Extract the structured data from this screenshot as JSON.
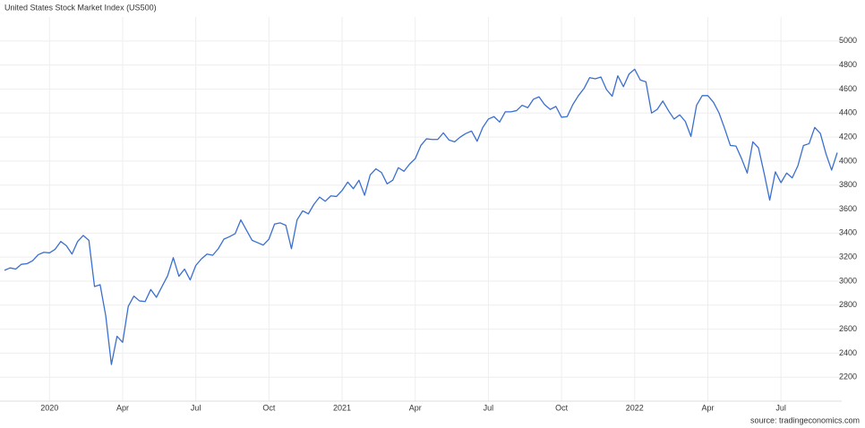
{
  "chart_data": {
    "type": "line",
    "title": "United States Stock Market Index (US500)",
    "source": "source: tradingeconomics.com",
    "categories": [
      null,
      null,
      null,
      null,
      null,
      null,
      null,
      null,
      "2020",
      null,
      null,
      null,
      null,
      null,
      null,
      null,
      null,
      null,
      null,
      null,
      null,
      "Apr",
      null,
      null,
      null,
      null,
      null,
      null,
      null,
      null,
      null,
      null,
      null,
      null,
      "Jul",
      null,
      null,
      null,
      null,
      null,
      null,
      null,
      null,
      null,
      null,
      null,
      null,
      "Oct",
      null,
      null,
      null,
      null,
      null,
      null,
      null,
      null,
      null,
      null,
      null,
      null,
      "2021",
      null,
      null,
      null,
      null,
      null,
      null,
      null,
      null,
      null,
      null,
      null,
      null,
      "Apr",
      null,
      null,
      null,
      null,
      null,
      null,
      null,
      null,
      null,
      null,
      null,
      null,
      "Jul",
      null,
      null,
      null,
      null,
      null,
      null,
      null,
      null,
      null,
      null,
      null,
      null,
      "Oct",
      null,
      null,
      null,
      null,
      null,
      null,
      null,
      null,
      null,
      null,
      null,
      null,
      "2022",
      null,
      null,
      null,
      null,
      null,
      null,
      null,
      null,
      null,
      null,
      null,
      null,
      "Apr",
      null,
      null,
      null,
      null,
      null,
      null,
      null,
      null,
      null,
      null,
      null,
      null,
      "Jul",
      null,
      null,
      null,
      null,
      null,
      null,
      null,
      null,
      null,
      null
    ],
    "values": [
      3090,
      3110,
      3100,
      3140,
      3145,
      3170,
      3220,
      3240,
      3235,
      3265,
      3330,
      3295,
      3225,
      3330,
      3380,
      3340,
      2955,
      2970,
      2710,
      2305,
      2540,
      2490,
      2790,
      2875,
      2835,
      2830,
      2930,
      2865,
      2955,
      3045,
      3195,
      3040,
      3100,
      3010,
      3130,
      3185,
      3225,
      3215,
      3270,
      3350,
      3370,
      3395,
      3510,
      3425,
      3340,
      3320,
      3300,
      3350,
      3475,
      3485,
      3465,
      3270,
      3510,
      3585,
      3560,
      3640,
      3700,
      3665,
      3710,
      3705,
      3755,
      3825,
      3770,
      3840,
      3715,
      3885,
      3935,
      3905,
      3810,
      3840,
      3945,
      3915,
      3975,
      4020,
      4130,
      4185,
      4180,
      4180,
      4235,
      4175,
      4160,
      4200,
      4230,
      4250,
      4165,
      4280,
      4350,
      4370,
      4325,
      4410,
      4410,
      4420,
      4465,
      4445,
      4515,
      4535,
      4470,
      4430,
      4455,
      4365,
      4370,
      4470,
      4545,
      4605,
      4695,
      4685,
      4700,
      4595,
      4540,
      4710,
      4620,
      4725,
      4765,
      4675,
      4660,
      4400,
      4430,
      4500,
      4420,
      4350,
      4385,
      4330,
      4205,
      4465,
      4545,
      4545,
      4490,
      4400,
      4270,
      4130,
      4125,
      4020,
      3900,
      4160,
      4110,
      3900,
      3675,
      3910,
      3820,
      3900,
      3860,
      3960,
      4130,
      4145,
      4280,
      4230,
      4060,
      3925,
      4070
    ],
    "color": "#3a6fd0",
    "ylim": [
      2000,
      5200
    ],
    "yticks": [
      2200,
      2400,
      2600,
      2800,
      3000,
      3200,
      3400,
      3600,
      3800,
      4000,
      4200,
      4400,
      4600,
      4800,
      5000
    ],
    "grid": true
  }
}
